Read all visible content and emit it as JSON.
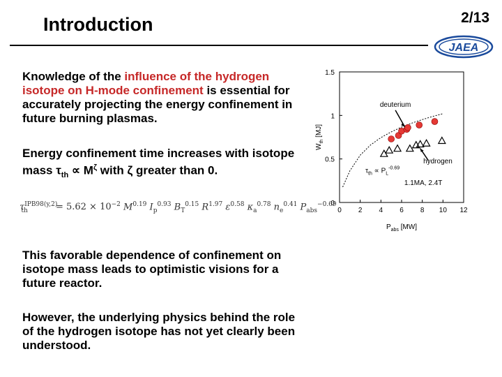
{
  "header": {
    "title": "Introduction",
    "page": "2/13",
    "logo_text": "JAEA"
  },
  "paragraphs": {
    "p1_a": "Knowledge of the ",
    "p1_b": "influence of the hydrogen isotope on H-mode confinement",
    "p1_c": " is essential for accurately projecting the energy confinement in future burning plasmas.",
    "p2_a": "Energy confinement time increases with isotope mass ",
    "p2_tau": "τ",
    "p2_th": "th",
    "p2_b": " ∝ M",
    "p2_zeta": "ζ",
    "p2_c": " with ",
    "p2_zeta2": "ζ",
    "p2_d": " greater than 0.",
    "p3": "This favorable dependence of confinement on isotope mass leads to optimistic visions for a future reactor.",
    "p4": "However, the underlying physics behind the role of the hydrogen isotope has not yet clearly been understood."
  },
  "formula": {
    "lhs": "τ",
    "lhs_sup": "IPB98(y,2)",
    "lhs_sub": "th",
    "rhs": "= 5.62 × 10",
    "rhs_exp": "−2",
    "m": "M",
    "m_exp": "0.19",
    "ip": "I",
    "ip_sub": "p",
    "ip_exp": "0.93",
    "bt": "B",
    "bt_sub": "T",
    "bt_exp": "0.15",
    "r": "R",
    "r_exp": "1.97",
    "eps": "ε",
    "eps_exp": "0.58",
    "kappa": "κ",
    "kappa_sub": "a",
    "kappa_exp": "0.78",
    "ne": "n",
    "ne_sub": "e",
    "ne_exp": "0.41",
    "p": "P",
    "p_sub": "abs",
    "p_exp": "−0.69"
  },
  "chart_data": {
    "type": "scatter",
    "xlabel": "Pabs [MW]",
    "ylabel": "Wth [MJ]",
    "xlim": [
      0,
      12
    ],
    "ylim": [
      0,
      1.5
    ],
    "xticks": [
      "0",
      "2",
      "4",
      "6",
      "8",
      "10",
      "12"
    ],
    "yticks": [
      "0",
      "0.5",
      "1",
      "1.5"
    ],
    "series": [
      {
        "name": "deuterium",
        "marker": "circle",
        "color": "#e53935",
        "x": [
          5.0,
          5.7,
          6.0,
          6.5,
          6.6,
          7.7,
          9.2
        ],
        "y": [
          0.73,
          0.77,
          0.82,
          0.84,
          0.86,
          0.89,
          0.93
        ]
      },
      {
        "name": "hydrogen",
        "marker": "triangle",
        "color": "#000000",
        "x": [
          4.3,
          4.8,
          5.6,
          6.8,
          7.4,
          7.8,
          8.4,
          9.9
        ],
        "y": [
          0.56,
          0.6,
          0.62,
          0.62,
          0.66,
          0.67,
          0.68,
          0.71
        ]
      }
    ],
    "fit_x": [
      0.3,
      1.0,
      2.0,
      3.0,
      4.0,
      5.0,
      6.0,
      7.0,
      8.0,
      9.0,
      10.0
    ],
    "fit_y": [
      0.177,
      0.363,
      0.544,
      0.661,
      0.745,
      0.811,
      0.866,
      0.912,
      0.952,
      0.988,
      1.02
    ],
    "annotations": {
      "deuterium": "deuterium",
      "hydrogen": "hydrogen",
      "scaling_tau": "τ",
      "scaling_sub": "th",
      "scaling_mid": " ∝ P",
      "scaling_Lsub": "L",
      "scaling_exp": "-0.69",
      "condition": "1.1MA, 2.4T"
    },
    "grid": false
  }
}
